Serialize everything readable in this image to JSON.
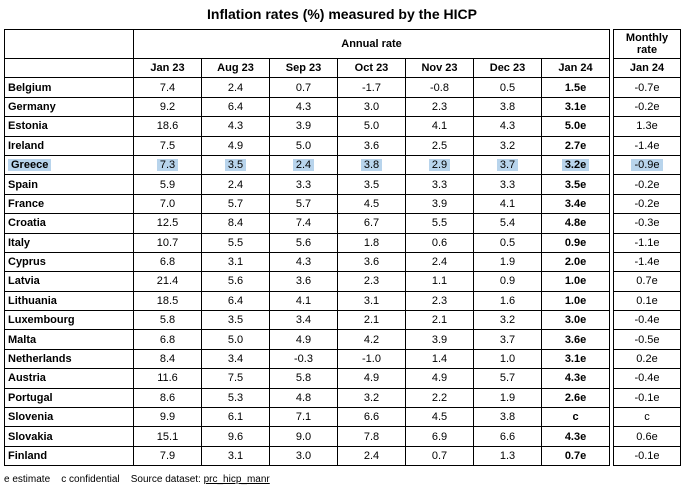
{
  "title": "Inflation rates (%) measured by the HICP",
  "annual_header": "Annual rate",
  "monthly_header_line1": "Monthly",
  "monthly_header_line2": "rate",
  "months": [
    "Jan 23",
    "Aug 23",
    "Sep 23",
    "Oct 23",
    "Nov 23",
    "Dec 23",
    "Jan 24"
  ],
  "monthly_month": "Jan 24",
  "rows": [
    {
      "country": "Belgium",
      "values": [
        "7.4",
        "2.4",
        "0.7",
        "-1.7",
        "-0.8",
        "0.5",
        "1.5e"
      ],
      "monthly": "-0.7e"
    },
    {
      "country": "Germany",
      "values": [
        "9.2",
        "6.4",
        "4.3",
        "3.0",
        "2.3",
        "3.8",
        "3.1e"
      ],
      "monthly": "-0.2e"
    },
    {
      "country": "Estonia",
      "values": [
        "18.6",
        "4.3",
        "3.9",
        "5.0",
        "4.1",
        "4.3",
        "5.0e"
      ],
      "monthly": "1.3e"
    },
    {
      "country": "Ireland",
      "values": [
        "7.5",
        "4.9",
        "5.0",
        "3.6",
        "2.5",
        "3.2",
        "2.7e"
      ],
      "monthly": "-1.4e"
    },
    {
      "country": "Greece",
      "values": [
        "7.3",
        "3.5",
        "2.4",
        "3.8",
        "2.9",
        "3.7",
        "3.2e"
      ],
      "monthly": "-0.9e",
      "highlight": true
    },
    {
      "country": "Spain",
      "values": [
        "5.9",
        "2.4",
        "3.3",
        "3.5",
        "3.3",
        "3.3",
        "3.5e"
      ],
      "monthly": "-0.2e"
    },
    {
      "country": "France",
      "values": [
        "7.0",
        "5.7",
        "5.7",
        "4.5",
        "3.9",
        "4.1",
        "3.4e"
      ],
      "monthly": "-0.2e"
    },
    {
      "country": "Croatia",
      "values": [
        "12.5",
        "8.4",
        "7.4",
        "6.7",
        "5.5",
        "5.4",
        "4.8e"
      ],
      "monthly": "-0.3e"
    },
    {
      "country": "Italy",
      "values": [
        "10.7",
        "5.5",
        "5.6",
        "1.8",
        "0.6",
        "0.5",
        "0.9e"
      ],
      "monthly": "-1.1e"
    },
    {
      "country": "Cyprus",
      "values": [
        "6.8",
        "3.1",
        "4.3",
        "3.6",
        "2.4",
        "1.9",
        "2.0e"
      ],
      "monthly": "-1.4e"
    },
    {
      "country": "Latvia",
      "values": [
        "21.4",
        "5.6",
        "3.6",
        "2.3",
        "1.1",
        "0.9",
        "1.0e"
      ],
      "monthly": "0.7e"
    },
    {
      "country": "Lithuania",
      "values": [
        "18.5",
        "6.4",
        "4.1",
        "3.1",
        "2.3",
        "1.6",
        "1.0e"
      ],
      "monthly": "0.1e"
    },
    {
      "country": "Luxembourg",
      "values": [
        "5.8",
        "3.5",
        "3.4",
        "2.1",
        "2.1",
        "3.2",
        "3.0e"
      ],
      "monthly": "-0.4e"
    },
    {
      "country": "Malta",
      "values": [
        "6.8",
        "5.0",
        "4.9",
        "4.2",
        "3.9",
        "3.7",
        "3.6e"
      ],
      "monthly": "-0.5e"
    },
    {
      "country": "Netherlands",
      "values": [
        "8.4",
        "3.4",
        "-0.3",
        "-1.0",
        "1.4",
        "1.0",
        "3.1e"
      ],
      "monthly": "0.2e"
    },
    {
      "country": "Austria",
      "values": [
        "11.6",
        "7.5",
        "5.8",
        "4.9",
        "4.9",
        "5.7",
        "4.3e"
      ],
      "monthly": "-0.4e"
    },
    {
      "country": "Portugal",
      "values": [
        "8.6",
        "5.3",
        "4.8",
        "3.2",
        "2.2",
        "1.9",
        "2.6e"
      ],
      "monthly": "-0.1e"
    },
    {
      "country": "Slovenia",
      "values": [
        "9.9",
        "6.1",
        "7.1",
        "6.6",
        "4.5",
        "3.8",
        "c"
      ],
      "monthly": "c"
    },
    {
      "country": "Slovakia",
      "values": [
        "15.1",
        "9.6",
        "9.0",
        "7.8",
        "6.9",
        "6.6",
        "4.3e"
      ],
      "monthly": "0.6e"
    },
    {
      "country": "Finland",
      "values": [
        "7.9",
        "3.1",
        "3.0",
        "2.4",
        "0.7",
        "1.3",
        "0.7e"
      ],
      "monthly": "-0.1e"
    }
  ],
  "footer": {
    "estimate": "e estimate",
    "confidential": "c confidential",
    "source_label": "Source dataset:",
    "source_code": "prc_hicp_manr"
  }
}
